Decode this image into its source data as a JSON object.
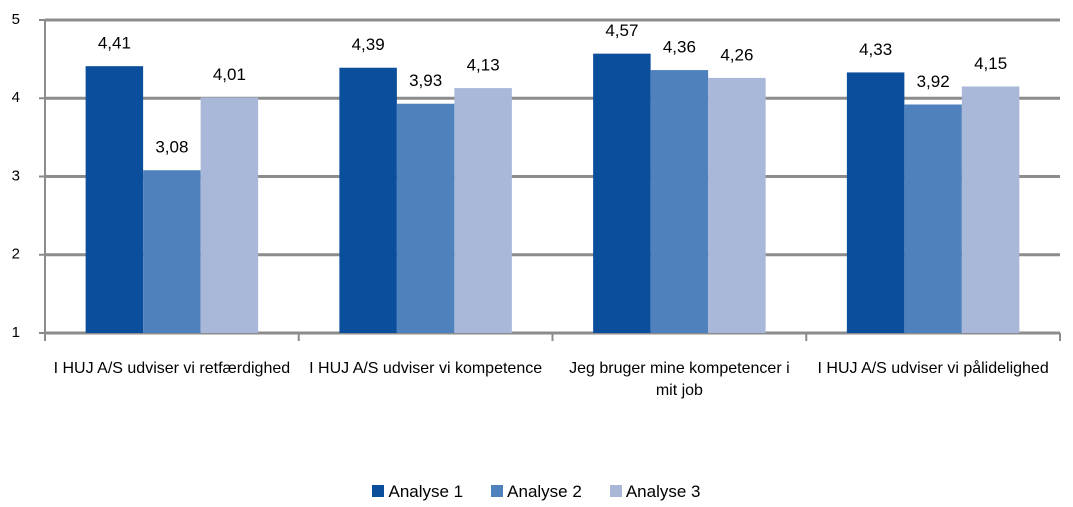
{
  "chart_data": {
    "type": "bar",
    "categories": [
      "I HUJ A/S udviser vi retfærdighed",
      "I HUJ A/S udviser vi kompetence",
      "Jeg bruger mine kompetencer i mit job",
      "I HUJ A/S udviser vi pålidelighed"
    ],
    "series": [
      {
        "name": "Analyse 1",
        "color": "#0b4f9c",
        "values": [
          4.41,
          4.39,
          4.57,
          4.33
        ],
        "value_labels": [
          "4,41",
          "4,39",
          "4,57",
          "4,33"
        ]
      },
      {
        "name": "Analyse 2",
        "color": "#4f81bd",
        "values": [
          3.08,
          3.93,
          4.36,
          3.92
        ],
        "value_labels": [
          "3,08",
          "3,93",
          "4,36",
          "3,92"
        ]
      },
      {
        "name": "Analyse 3",
        "color": "#a9b8d9",
        "values": [
          4.01,
          4.13,
          4.26,
          4.15
        ],
        "value_labels": [
          "4,01",
          "4,13",
          "4,26",
          "4,15"
        ]
      }
    ],
    "ylim": [
      1,
      5
    ],
    "yticks": [
      1,
      2,
      3,
      4,
      5
    ],
    "grid": true,
    "legend": "bottom"
  }
}
